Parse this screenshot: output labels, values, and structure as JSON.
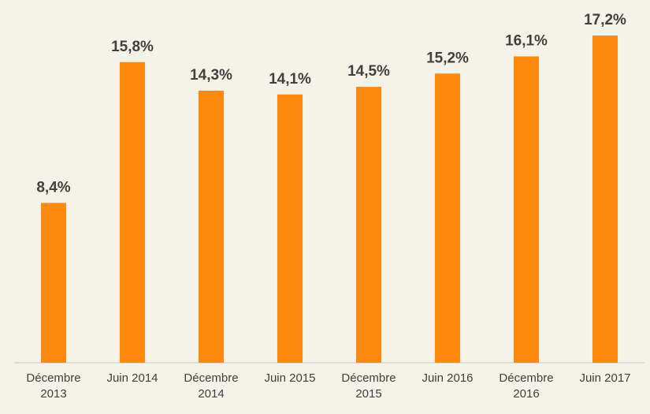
{
  "chart_data": {
    "type": "bar",
    "categories": [
      "Décembre 2013",
      "Juin 2014",
      "Décembre 2014",
      "Juin 2015",
      "Décembre 2015",
      "Juin 2016",
      "Décembre 2016",
      "Juin 2017"
    ],
    "values": [
      8.4,
      15.8,
      14.3,
      14.1,
      14.5,
      15.2,
      16.1,
      17.2
    ],
    "value_labels": [
      "8,4%",
      "15,8%",
      "14,3%",
      "14,1%",
      "14,5%",
      "15,2%",
      "16,1%",
      "17,2%"
    ],
    "color": "#fd8a0f"
  }
}
